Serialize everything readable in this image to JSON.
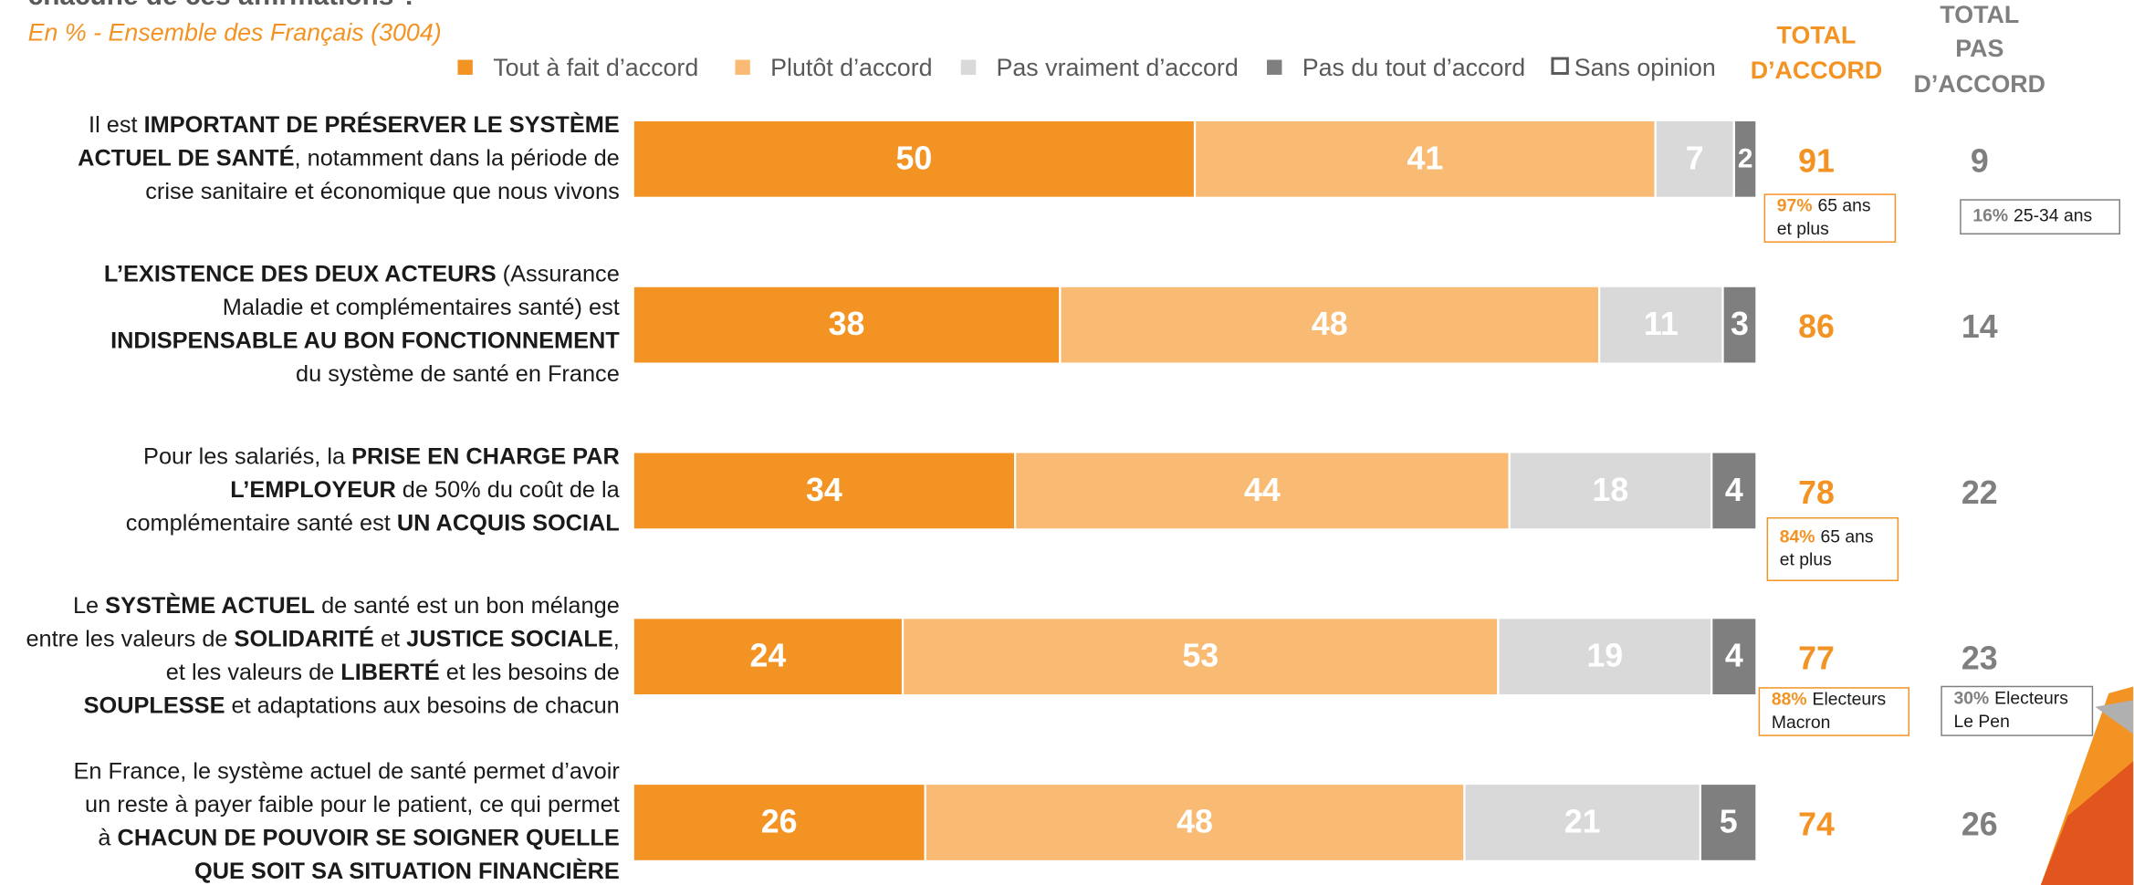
{
  "chart_data": {
    "type": "stacked-bar-horizontal",
    "title": "chacune de ces affirmations ?",
    "subtitle": "En % - Ensemble des Français (3004)",
    "categories": [
      [
        [
          {
            "text": "Il est "
          },
          {
            "text": "IMPORTANT DE PRÉSERVER LE SYSTÈME",
            "bold": true
          }
        ],
        [
          {
            "text": "ACTUEL DE SANTÉ",
            "bold": true
          },
          {
            "text": ", notamment dans la période de"
          }
        ],
        [
          {
            "text": "crise sanitaire et économique que nous vivons"
          }
        ]
      ],
      [
        [
          {
            "text": "L’EXISTENCE DES DEUX ACTEURS",
            "bold": true
          },
          {
            "text": " (Assurance"
          }
        ],
        [
          {
            "text": "Maladie et complémentaires santé) est"
          }
        ],
        [
          {
            "text": "INDISPENSABLE AU BON FONCTIONNEMENT",
            "bold": true
          }
        ],
        [
          {
            "text": "du système de santé en France"
          }
        ]
      ],
      [
        [
          {
            "text": "Pour les salariés, la "
          },
          {
            "text": "PRISE EN CHARGE PAR",
            "bold": true
          }
        ],
        [
          {
            "text": "L’EMPLOYEUR",
            "bold": true
          },
          {
            "text": " de 50% du coût de la"
          }
        ],
        [
          {
            "text": "complémentaire santé est "
          },
          {
            "text": "UN ACQUIS SOCIAL",
            "bold": true
          }
        ]
      ],
      [
        [
          {
            "text": "Le "
          },
          {
            "text": "SYSTÈME ACTUEL",
            "bold": true
          },
          {
            "text": " de santé est un bon mélange"
          }
        ],
        [
          {
            "text": "entre les valeurs de "
          },
          {
            "text": "SOLIDARITÉ",
            "bold": true
          },
          {
            "text": " et "
          },
          {
            "text": "JUSTICE SOCIALE",
            "bold": true
          },
          {
            "text": ","
          }
        ],
        [
          {
            "text": "et les valeurs de "
          },
          {
            "text": "LIBERTÉ",
            "bold": true
          },
          {
            "text": " et les besoins de"
          }
        ],
        [
          {
            "text": "SOUPLESSE",
            "bold": true
          },
          {
            "text": " et adaptations aux besoins de chacun"
          }
        ]
      ],
      [
        [
          {
            "text": "En France, le système actuel de santé permet d’avoir"
          }
        ],
        [
          {
            "text": "un reste à payer faible pour le patient, ce qui permet"
          }
        ],
        [
          {
            "text": "à "
          },
          {
            "text": "CHACUN DE POUVOIR SE SOIGNER QUELLE",
            "bold": true
          }
        ],
        [
          {
            "text": "QUE SOIT SA SITUATION FINANCIÈRE",
            "bold": true
          }
        ]
      ]
    ],
    "series": [
      {
        "name": "Tout à fait d’accord",
        "color": "#f39323",
        "values": [
          50,
          38,
          34,
          24,
          26
        ]
      },
      {
        "name": "Plutôt d’accord",
        "color": "#f9bb73",
        "values": [
          41,
          48,
          44,
          53,
          48
        ]
      },
      {
        "name": "Pas vraiment d’accord",
        "color": "#d9d9d9",
        "values": [
          7,
          11,
          18,
          19,
          21
        ]
      },
      {
        "name": "Pas du tout d’accord",
        "color": "#7f7f7f",
        "values": [
          2,
          3,
          4,
          4,
          5
        ]
      }
    ],
    "legend_only": [
      {
        "name": "Sans opinion",
        "color": "#ffffff",
        "border": "#595959"
      }
    ],
    "xlim": [
      0,
      100
    ],
    "totals": [
      {
        "header": [
          "TOTAL",
          "D’ACCORD"
        ],
        "color": "#f39323",
        "values": [
          91,
          86,
          78,
          77,
          74
        ]
      },
      {
        "header": [
          "TOTAL",
          "PAS",
          "D’ACCORD"
        ],
        "color": "#7f7f7f",
        "values": [
          9,
          14,
          22,
          23,
          26
        ]
      }
    ],
    "annotations": [
      {
        "total": 0,
        "row": 0,
        "value": 97,
        "value_label": "97%",
        "text": [
          "65 ans",
          "et plus"
        ],
        "color": "#f39323"
      },
      {
        "total": 0,
        "row": 2,
        "value": 84,
        "value_label": "84%",
        "text": [
          "65 ans",
          "et plus"
        ],
        "color": "#f39323"
      },
      {
        "total": 0,
        "row": 3,
        "value": 88,
        "value_label": "88%",
        "text": [
          "Electeurs",
          "Macron"
        ],
        "color": "#f39323"
      },
      {
        "total": 1,
        "row": 0,
        "value": 16,
        "value_label": "16%",
        "text": [
          "25-34 ans"
        ],
        "color": "#7f7f7f"
      },
      {
        "total": 1,
        "row": 3,
        "value": 30,
        "value_label": "30%",
        "text": [
          "Electeurs",
          "Le Pen"
        ],
        "color": "#7f7f7f"
      }
    ]
  }
}
